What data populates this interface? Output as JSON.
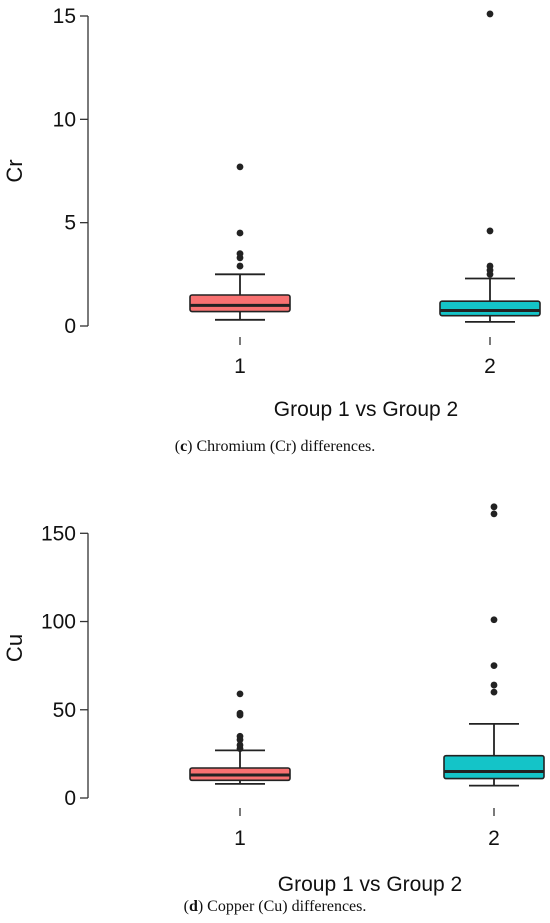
{
  "chart_data": [
    {
      "type": "boxplot",
      "ylabel": "Cr",
      "xlabel": "Group 1 vs Group 2",
      "ylim": [
        0,
        15
      ],
      "yticks": [
        0,
        5,
        10,
        15
      ],
      "categories": [
        "1",
        "2"
      ],
      "boxes": [
        {
          "category": "1",
          "color": "#f87171",
          "whisker_low": 0.3,
          "q1": 0.7,
          "median": 1.0,
          "q3": 1.5,
          "whisker_high": 2.5,
          "outliers": [
            2.9,
            3.3,
            3.5,
            4.5,
            7.7
          ]
        },
        {
          "category": "2",
          "color": "#14c4c8",
          "whisker_low": 0.2,
          "q1": 0.5,
          "median": 0.75,
          "q3": 1.2,
          "whisker_high": 2.3,
          "outliers": [
            2.5,
            2.7,
            2.9,
            4.6,
            15.1
          ]
        }
      ],
      "caption_letter": "c",
      "caption_text": ") Chromium (Cr) differences."
    },
    {
      "type": "boxplot",
      "ylabel": "Cu",
      "xlabel": "Group 1 vs Group 2",
      "ylim": [
        0,
        170
      ],
      "yticks": [
        0,
        50,
        100,
        150
      ],
      "categories": [
        "1",
        "2"
      ],
      "boxes": [
        {
          "category": "1",
          "color": "#f87171",
          "whisker_low": 8,
          "q1": 10,
          "median": 13,
          "q3": 17,
          "whisker_high": 27,
          "outliers": [
            28,
            30,
            33,
            35,
            47,
            48,
            59
          ]
        },
        {
          "category": "2",
          "color": "#14c4c8",
          "whisker_low": 7,
          "q1": 11,
          "median": 15,
          "q3": 24,
          "whisker_high": 42,
          "outliers": [
            60,
            64,
            75,
            101,
            161,
            165
          ]
        }
      ],
      "caption_letter": "d",
      "caption_text": ") Copper (Cu) differences."
    }
  ]
}
